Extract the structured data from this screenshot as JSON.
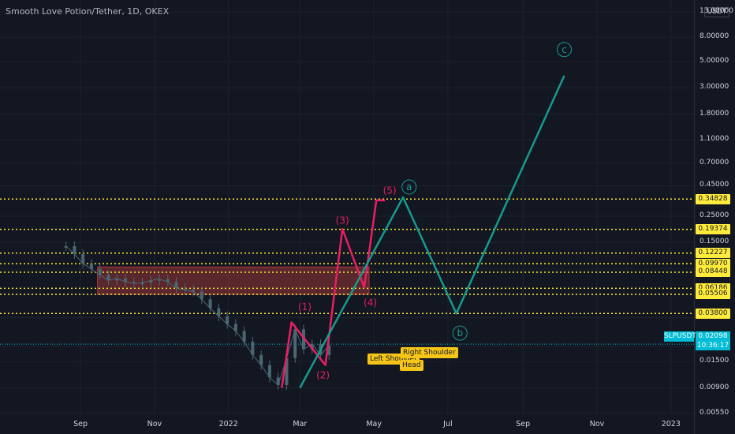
{
  "title": "Smooth Love Potion/Tether, 1D, OKEX",
  "unit_label": "USDT",
  "colors": {
    "background": "#131722",
    "candle": "#4a6872",
    "impulse": "#e91e63",
    "correction": "#17998f",
    "level": "#ffeb3b",
    "zone": "#b23b3b",
    "price_line": "#00bcd4"
  },
  "y_axis_ticks": [
    "13.00000",
    "8.00000",
    "5.00000",
    "3.00000",
    "1.80000",
    "1.10000",
    "0.70000",
    "0.45000",
    "0.25000",
    "0.15000",
    "0.09000",
    "0.05500",
    "0.03500",
    "0.02000",
    "0.01500",
    "0.00900",
    "0.00550"
  ],
  "x_axis_ticks": [
    "Sep",
    "Nov",
    "2022",
    "Mar",
    "May",
    "Jul",
    "Sep",
    "Nov",
    "2023"
  ],
  "level_labels": [
    "0.34828",
    "0.19374",
    "0.12227",
    "0.09970",
    "0.08448",
    "0.06186",
    "0.05506",
    "0.03800"
  ],
  "symbol_label": "SLPUSDT",
  "current_price": "0.02098",
  "countdown": "10:36:17",
  "pattern_labels": {
    "left_shoulder": "Left Shoulder",
    "head": "Head",
    "right_shoulder": "Right Shoulder"
  },
  "chart_data": {
    "type": "line",
    "scale": "log",
    "ylim": [
      0.005,
      15
    ],
    "x_range": [
      "2021-07-20",
      "2023-01-20"
    ],
    "price_history": {
      "x": [
        "2021-08-20",
        "2021-08-27",
        "2021-09-03",
        "2021-09-10",
        "2021-09-17",
        "2021-09-24",
        "2021-10-01",
        "2021-10-08",
        "2021-10-15",
        "2021-10-22",
        "2021-10-29",
        "2021-11-05",
        "2021-11-12",
        "2021-11-19",
        "2021-11-26",
        "2021-12-03",
        "2021-12-10",
        "2021-12-17",
        "2021-12-24",
        "2021-12-31",
        "2022-01-07",
        "2022-01-14",
        "2022-01-21",
        "2022-01-28",
        "2022-02-04",
        "2022-02-11",
        "2022-02-18",
        "2022-02-25",
        "2022-03-04",
        "2022-03-11",
        "2022-03-18",
        "2022-03-25"
      ],
      "y": [
        0.14,
        0.12,
        0.1,
        0.09,
        0.08,
        0.072,
        0.075,
        0.07,
        0.068,
        0.069,
        0.072,
        0.074,
        0.07,
        0.062,
        0.06,
        0.058,
        0.05,
        0.042,
        0.036,
        0.031,
        0.027,
        0.022,
        0.017,
        0.014,
        0.011,
        0.0095,
        0.016,
        0.028,
        0.019,
        0.021,
        0.017,
        0.0205
      ]
    },
    "series": [
      {
        "x": [
          "2022-02-14",
          "2022-02-22",
          "2022-03-22",
          "2022-04-05",
          "2022-04-23",
          "2022-05-03",
          "2022-05-10"
        ],
        "y": [
          0.009,
          0.032,
          0.014,
          0.195,
          0.063,
          0.34,
          0.34
        ]
      },
      {
        "x": [
          "2022-03-01",
          "2022-05-25",
          "2022-07-08",
          "2022-10-05"
        ],
        "y": [
          0.009,
          0.36,
          0.038,
          3.8
        ]
      }
    ],
    "wave_labels": [
      {
        "text": "(1)",
        "x": "2022-03-05",
        "y": 0.043
      },
      {
        "text": "(2)",
        "x": "2022-03-20",
        "y": 0.0115
      },
      {
        "text": "(3)",
        "x": "2022-04-05",
        "y": 0.23
      },
      {
        "text": "(4)",
        "x": "2022-04-28",
        "y": 0.047
      },
      {
        "text": "(5)",
        "x": "2022-05-14",
        "y": 0.41
      },
      {
        "text": "a",
        "x": "2022-05-30",
        "y": 0.44
      },
      {
        "text": "b",
        "x": "2022-07-11",
        "y": 0.026
      },
      {
        "text": "c",
        "x": "2022-10-05",
        "y": 6.3
      }
    ],
    "horizontal_levels": [
      0.34828,
      0.19374,
      0.12227,
      0.0997,
      0.08448,
      0.06186,
      0.05506,
      0.038
    ],
    "zone": {
      "x_from": "2021-09-15",
      "x_to": "2022-04-27",
      "y_low": 0.055,
      "y_high": 0.0935
    }
  }
}
